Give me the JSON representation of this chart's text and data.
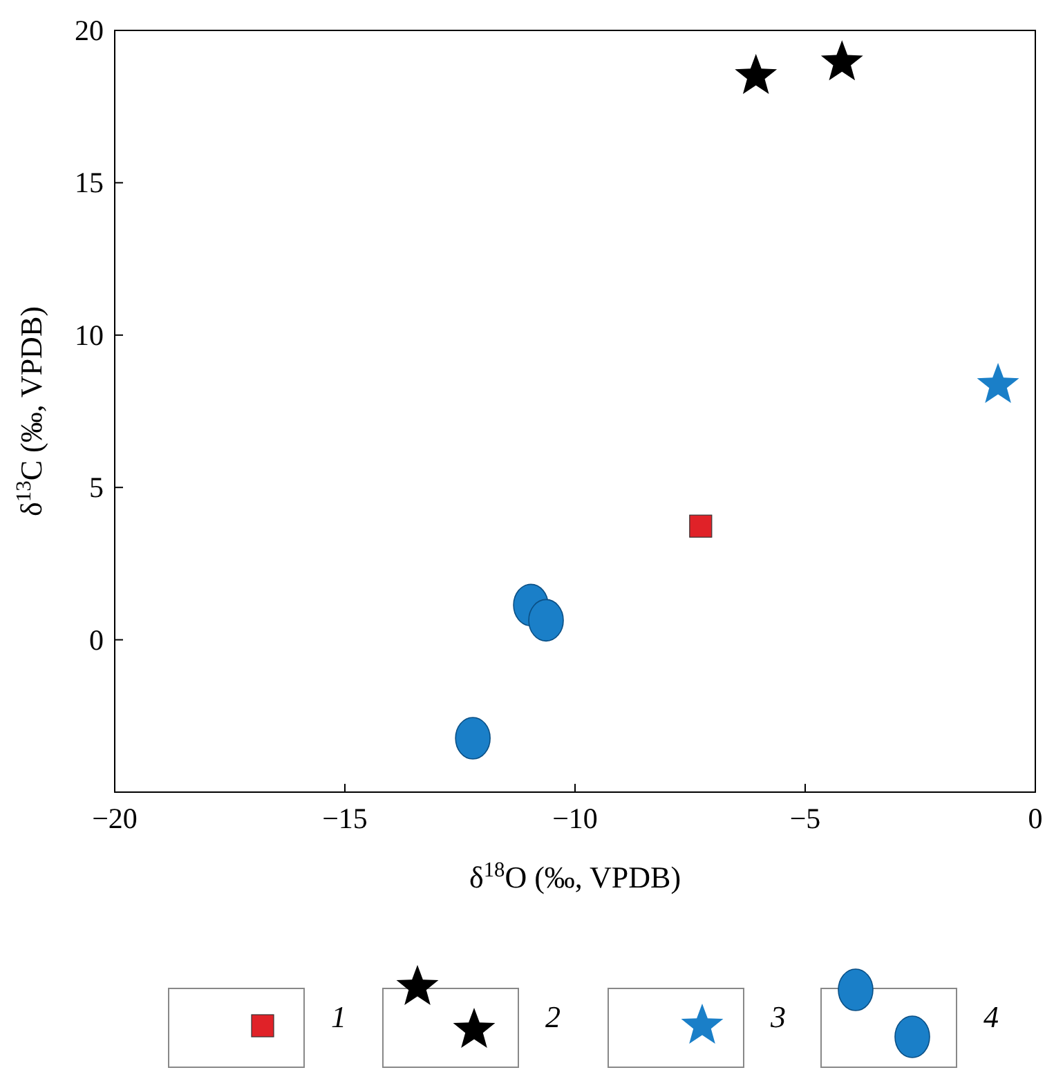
{
  "chart_data": {
    "type": "scatter",
    "xlabel": "δ$^{18}$O (‰, VPDB)",
    "ylabel": "δ$^{13}$C (‰, VPDB)",
    "xlim": [
      -20,
      0
    ],
    "ylim": [
      -5,
      20
    ],
    "xticks": [
      -20,
      -15,
      -10,
      -5,
      0
    ],
    "yticks": [
      0,
      5,
      10,
      15,
      20
    ],
    "grid": false,
    "legend": "bottom",
    "series": [
      {
        "name": "1",
        "color": "#e02228",
        "marker": "square",
        "x": [
          -7.27
        ],
        "values": [
          3.73
        ]
      },
      {
        "name": "2",
        "color": "#000000",
        "marker": "star",
        "x": [
          -6.07,
          -4.2
        ],
        "values": [
          18.5,
          18.95
        ]
      },
      {
        "name": "3",
        "color": "#1a7fc8",
        "marker": "star",
        "x": [
          -0.81
        ],
        "values": [
          8.36
        ]
      },
      {
        "name": "4",
        "color": "#1a7fc8",
        "marker": "circle",
        "x": [
          -10.96,
          -10.63,
          -12.22
        ],
        "values": [
          1.14,
          0.64,
          -3.23
        ]
      }
    ]
  }
}
